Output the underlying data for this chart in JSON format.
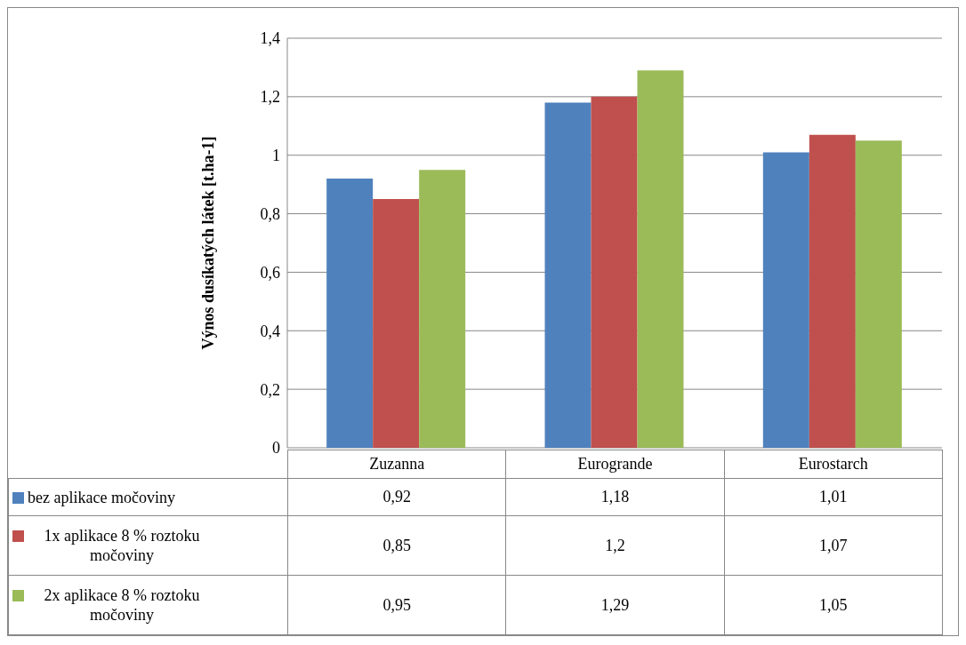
{
  "chart_data": {
    "type": "bar",
    "ylabel": "Výnos dusíkatých látek [t.ha-1]",
    "categories": [
      "Zuzanna",
      "Eurogrande",
      "Eurostarch"
    ],
    "series": [
      {
        "name": "bez aplikace močoviny",
        "color": "#4f81bd",
        "values": [
          0.92,
          1.18,
          1.01
        ],
        "value_labels": [
          "0,92",
          "1,18",
          "1,01"
        ]
      },
      {
        "name": "1x aplikace 8 % roztoku močoviny",
        "color": "#c0504d",
        "values": [
          0.85,
          1.2,
          1.07
        ],
        "value_labels": [
          "0,85",
          "1,2",
          "1,07"
        ]
      },
      {
        "name": "2x aplikace 8 % roztoku močoviny",
        "color": "#9bbb59",
        "values": [
          0.95,
          1.29,
          1.05
        ],
        "value_labels": [
          "0,95",
          "1,29",
          "1,05"
        ]
      }
    ],
    "ylim": [
      0,
      1.4
    ],
    "yticks": [
      0,
      {
        "value": 0.2,
        "label": "0,2"
      },
      {
        "value": 0.4,
        "label": "0,4"
      },
      {
        "value": 0.6,
        "label": "0,6"
      },
      {
        "value": 0.8,
        "label": "0,8"
      },
      1,
      {
        "value": 1.2,
        "label": "1,2"
      },
      {
        "value": 1.4,
        "label": "1,4"
      }
    ],
    "grid": "y",
    "legend": "bottom"
  }
}
